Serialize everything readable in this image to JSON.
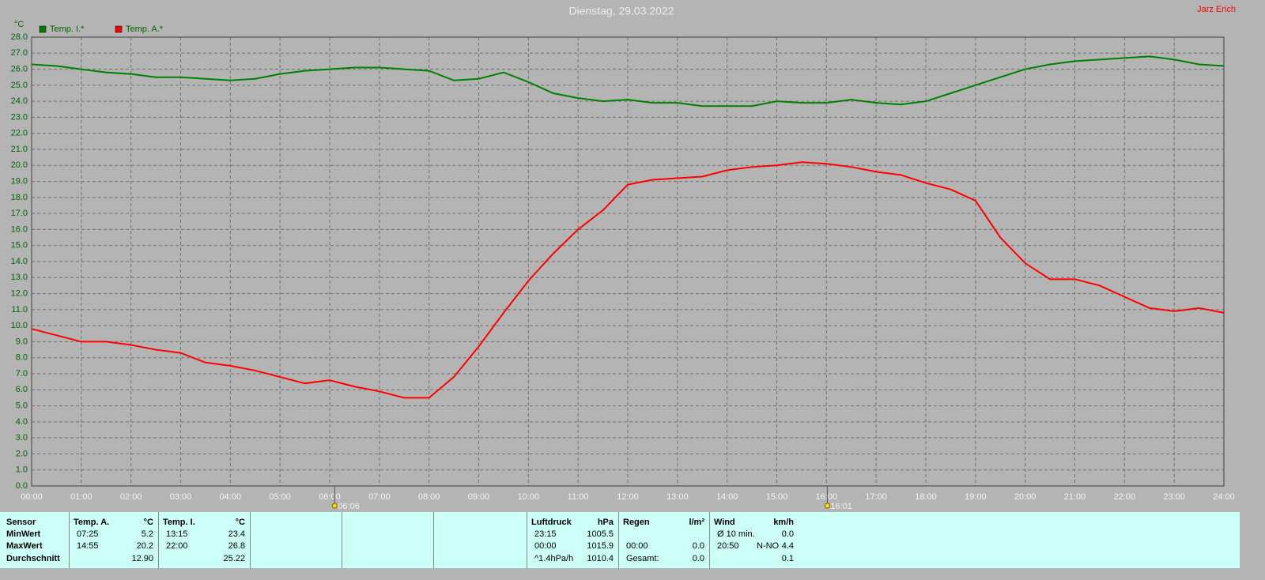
{
  "chart_data": {
    "type": "line",
    "title": "Dienstag, 29.03.2022",
    "author": "Jarz Erich",
    "y_label": "°C",
    "x": [
      0,
      0.5,
      1,
      1.5,
      2,
      2.5,
      3,
      3.5,
      4,
      4.5,
      5,
      5.5,
      6,
      6.5,
      7,
      7.5,
      8,
      8.5,
      9,
      9.5,
      10,
      10.5,
      11,
      11.5,
      12,
      12.5,
      13,
      13.5,
      14,
      14.5,
      15,
      15.5,
      16,
      16.5,
      17,
      17.5,
      18,
      18.5,
      19,
      19.5,
      20,
      20.5,
      21,
      21.5,
      22,
      22.5,
      23,
      23.5,
      24
    ],
    "series": [
      {
        "name": "Temp. I.*",
        "color": "#008000",
        "values": [
          26.3,
          26.2,
          26.0,
          25.8,
          25.7,
          25.5,
          25.5,
          25.4,
          25.3,
          25.4,
          25.7,
          25.9,
          26.0,
          26.1,
          26.1,
          26.0,
          25.9,
          25.3,
          25.4,
          25.8,
          25.2,
          24.5,
          24.2,
          24.0,
          24.1,
          23.9,
          23.9,
          23.7,
          23.7,
          23.7,
          24.0,
          23.9,
          23.9,
          24.1,
          23.9,
          23.8,
          24.0,
          24.5,
          25.0,
          25.5,
          26.0,
          26.3,
          26.5,
          26.6,
          26.7,
          26.8,
          26.6,
          26.3,
          26.2
        ]
      },
      {
        "name": "Temp. A.*",
        "color": "#ff0000",
        "values": [
          9.8,
          9.4,
          9.0,
          9.0,
          8.8,
          8.5,
          8.3,
          7.7,
          7.5,
          7.2,
          6.8,
          6.4,
          6.6,
          6.2,
          5.9,
          5.5,
          5.5,
          6.8,
          8.7,
          10.8,
          12.8,
          14.5,
          16.0,
          17.2,
          18.8,
          19.1,
          19.2,
          19.3,
          19.7,
          19.9,
          20.0,
          20.2,
          20.1,
          19.9,
          19.6,
          19.4,
          18.9,
          18.5,
          17.8,
          15.5,
          13.9,
          12.9,
          12.9,
          12.5,
          11.8,
          11.1,
          10.9,
          11.1,
          10.8
        ]
      }
    ],
    "xlim": [
      0,
      24
    ],
    "xticks": [
      {
        "value": 0,
        "label": "00:00"
      },
      {
        "value": 1,
        "label": "01:00"
      },
      {
        "value": 2,
        "label": "02:00"
      },
      {
        "value": 3,
        "label": "03:00"
      },
      {
        "value": 4,
        "label": "04:00"
      },
      {
        "value": 5,
        "label": "05:00"
      },
      {
        "value": 6,
        "label": "06:00"
      },
      {
        "value": 7,
        "label": "07:00"
      },
      {
        "value": 8,
        "label": "08:00"
      },
      {
        "value": 9,
        "label": "09:00"
      },
      {
        "value": 10,
        "label": "10:00"
      },
      {
        "value": 11,
        "label": "11:00"
      },
      {
        "value": 12,
        "label": "12:00"
      },
      {
        "value": 13,
        "label": "13:00"
      },
      {
        "value": 14,
        "label": "14:00"
      },
      {
        "value": 15,
        "label": "15:00"
      },
      {
        "value": 16,
        "label": "16:00"
      },
      {
        "value": 17,
        "label": "17:00"
      },
      {
        "value": 18,
        "label": "18:00"
      },
      {
        "value": 19,
        "label": "19:00"
      },
      {
        "value": 20,
        "label": "20:00"
      },
      {
        "value": 21,
        "label": "21:00"
      },
      {
        "value": 22,
        "label": "22:00"
      },
      {
        "value": 23,
        "label": "23:00"
      },
      {
        "value": 24,
        "label": "24:00"
      }
    ],
    "ylim": [
      0,
      28
    ],
    "yticks": [
      {
        "value": 0,
        "label": "0.0"
      },
      {
        "value": 1,
        "label": "1.0"
      },
      {
        "value": 2,
        "label": "2.0"
      },
      {
        "value": 3,
        "label": "3.0"
      },
      {
        "value": 4,
        "label": "4.0"
      },
      {
        "value": 5,
        "label": "5.0"
      },
      {
        "value": 6,
        "label": "6.0"
      },
      {
        "value": 7,
        "label": "7.0"
      },
      {
        "value": 8,
        "label": "8.0"
      },
      {
        "value": 9,
        "label": "9.0"
      },
      {
        "value": 10,
        "label": "10.0"
      },
      {
        "value": 11,
        "label": "11.0"
      },
      {
        "value": 12,
        "label": "12.0"
      },
      {
        "value": 13,
        "label": "13.0"
      },
      {
        "value": 14,
        "label": "14.0"
      },
      {
        "value": 15,
        "label": "15.0"
      },
      {
        "value": 16,
        "label": "16.0"
      },
      {
        "value": 17,
        "label": "17.0"
      },
      {
        "value": 18,
        "label": "18.0"
      },
      {
        "value": 19,
        "label": "19.0"
      },
      {
        "value": 20,
        "label": "20.0"
      },
      {
        "value": 21,
        "label": "21.0"
      },
      {
        "value": 22,
        "label": "22.0"
      },
      {
        "value": 23,
        "label": "23.0"
      },
      {
        "value": 24,
        "label": "24.0"
      },
      {
        "value": 25,
        "label": "25.0"
      },
      {
        "value": 26,
        "label": "26.0"
      },
      {
        "value": 27,
        "label": "27.0"
      },
      {
        "value": 28,
        "label": "28.0"
      }
    ],
    "grid": true,
    "annotations": [
      {
        "x": 6.1,
        "text": "06:06"
      },
      {
        "x": 16.017,
        "text": "16:01"
      }
    ]
  },
  "summary": {
    "sensor": {
      "header": "Sensor",
      "rows": [
        "MinWert",
        "MaxWert",
        "Durchschnitt"
      ]
    },
    "blocks": [
      {
        "header": "Temp. A.",
        "unit": "°C",
        "rows": [
          {
            "time": "07:25",
            "value": "5.2"
          },
          {
            "time": "14:55",
            "value": "20.2"
          },
          {
            "value": "12.90"
          }
        ]
      },
      {
        "header": "Temp. I.",
        "unit": "°C",
        "rows": [
          {
            "time": "13:15",
            "value": "23.4"
          },
          {
            "time": "22:00",
            "value": "26.8"
          },
          {
            "value": "25.22"
          }
        ]
      },
      {
        "header": "Luftdruck",
        "unit": "hPa",
        "rows": [
          {
            "time": "23:15",
            "value": "1005.5"
          },
          {
            "time": "00:00",
            "value": "1015.9"
          },
          {
            "time": "^1.4hPa/h",
            "value": "1010.4"
          }
        ]
      },
      {
        "header": "Regen",
        "unit": "l/m²",
        "rows": [
          {},
          {
            "time": "00:00",
            "value": "0.0"
          },
          {
            "time": "Gesamt:",
            "value": "0.0"
          }
        ]
      },
      {
        "header": "Wind",
        "unit": "km/h",
        "rows": [
          {
            "time": "Ø 10 min.",
            "value": "0.0"
          },
          {
            "time": "20:50",
            "dir": "N-NO",
            "value": "4.4"
          },
          {
            "value": "0.1"
          }
        ]
      }
    ]
  }
}
